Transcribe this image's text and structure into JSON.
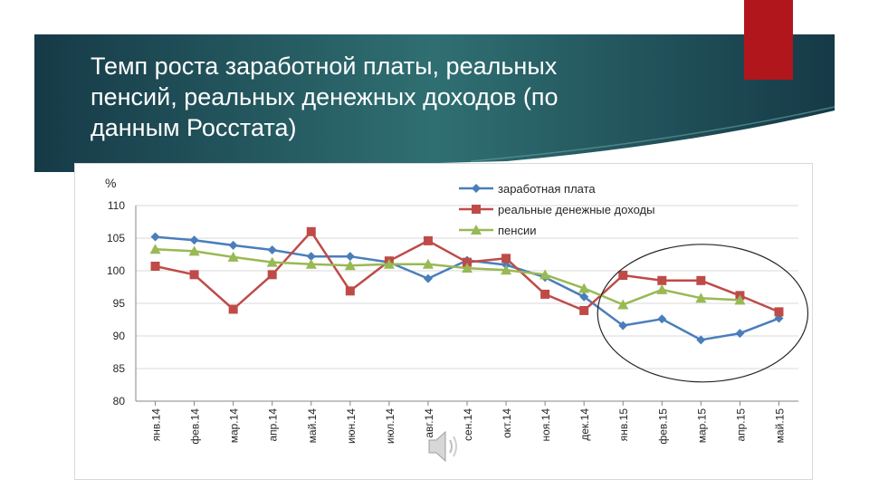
{
  "slide": {
    "title_lines": [
      "Темп роста заработной платы, реальных",
      "пенсий, реальных денежных доходов (по",
      "данным Росстата)"
    ],
    "colors": {
      "banner": "#17404e",
      "banner_mid": "#2f6f72",
      "accent": "#b0161c"
    },
    "icons": [
      "speaker-icon"
    ]
  },
  "chart_data": {
    "type": "line",
    "ylabel": "%",
    "ylim": [
      80,
      110
    ],
    "yticks": [
      80,
      85,
      90,
      95,
      100,
      105,
      110
    ],
    "categories": [
      "янв.14",
      "фев.14",
      "мар.14",
      "апр.14",
      "май.14",
      "июн.14",
      "июл.14",
      "авг.14",
      "сен.14",
      "окт.14",
      "ноя.14",
      "дек.14",
      "янв.15",
      "фев.15",
      "мар.15",
      "апр.15",
      "май.15"
    ],
    "grid": true,
    "legend_position": "top-right",
    "series": [
      {
        "name": "заработная плата",
        "color": "#4a7ebb",
        "marker": "diamond",
        "values": [
          105.2,
          104.7,
          103.9,
          103.2,
          102.2,
          102.2,
          101.3,
          98.8,
          101.6,
          100.9,
          99.0,
          96.0,
          91.6,
          92.6,
          89.4,
          90.4,
          92.7
        ]
      },
      {
        "name": "реальные денежные доходы",
        "color": "#be4b48",
        "marker": "square",
        "values": [
          100.7,
          99.4,
          94.1,
          99.4,
          106.0,
          96.9,
          101.5,
          104.6,
          101.3,
          101.9,
          96.4,
          93.9,
          99.3,
          98.5,
          98.5,
          96.2,
          93.7
        ]
      },
      {
        "name": "пенсии",
        "color": "#98b954",
        "marker": "triangle",
        "values": [
          103.3,
          103.0,
          102.1,
          101.3,
          101.0,
          100.8,
          101.0,
          101.0,
          100.4,
          100.1,
          99.4,
          97.3,
          94.8,
          97.1,
          95.8,
          95.5,
          null
        ]
      }
    ],
    "annotations": [
      {
        "type": "ellipse",
        "around": [
          "янв.15",
          "май.15"
        ]
      }
    ]
  }
}
